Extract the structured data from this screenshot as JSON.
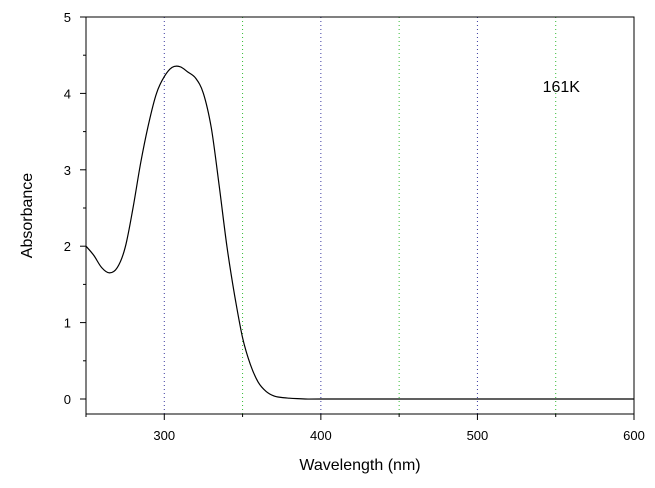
{
  "chart_data": {
    "type": "line",
    "title": "",
    "xlabel": "Wavelength (nm)",
    "ylabel": "Absorbance",
    "xlim": [
      250,
      600
    ],
    "ylim": [
      0,
      5
    ],
    "x_ticks": [
      300,
      400,
      500,
      600
    ],
    "x_tick_labels": [
      "300",
      "400",
      "500",
      "600"
    ],
    "y_ticks": [
      0,
      1,
      2,
      3,
      4,
      5
    ],
    "y_tick_labels": [
      "0",
      "1",
      "2",
      "3",
      "4",
      "5"
    ],
    "grid": {
      "x_dotted_lines": [
        {
          "x": 300,
          "color": "#3a3aa0"
        },
        {
          "x": 350,
          "color": "#33bb33"
        },
        {
          "x": 400,
          "color": "#3a3aa0"
        },
        {
          "x": 450,
          "color": "#33bb33"
        },
        {
          "x": 500,
          "color": "#3a3aa0"
        },
        {
          "x": 550,
          "color": "#33bb33"
        }
      ]
    },
    "annotation": {
      "text": "161K",
      "x": 548,
      "y": 4.1
    },
    "line_color": "#000000",
    "series": [
      {
        "x": [
          250,
          255,
          260,
          265,
          270,
          275,
          280,
          285,
          290,
          295,
          300,
          305,
          310,
          315,
          320,
          325,
          330,
          335,
          340,
          345,
          350,
          355,
          360,
          365,
          370,
          375,
          380,
          385,
          390,
          400,
          450,
          500,
          550,
          600
        ],
        "values": [
          2.0,
          1.88,
          1.72,
          1.65,
          1.72,
          1.98,
          2.5,
          3.1,
          3.6,
          4.0,
          4.22,
          4.34,
          4.35,
          4.28,
          4.2,
          4.0,
          3.55,
          2.8,
          2.0,
          1.35,
          0.8,
          0.45,
          0.22,
          0.1,
          0.04,
          0.02,
          0.01,
          0.005,
          0.0,
          0.0,
          0.0,
          0.0,
          0.0,
          0.0
        ]
      }
    ]
  }
}
